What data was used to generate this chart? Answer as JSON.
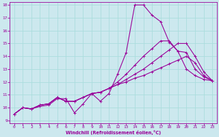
{
  "xlabel": "Windchill (Refroidissement éolien,°C)",
  "x": [
    0,
    1,
    2,
    3,
    4,
    5,
    6,
    7,
    8,
    9,
    10,
    11,
    12,
    13,
    14,
    15,
    16,
    17,
    18,
    19,
    20,
    21,
    22,
    23
  ],
  "line1": [
    9.5,
    10.0,
    9.9,
    10.1,
    10.2,
    10.7,
    10.7,
    9.6,
    10.3,
    11.1,
    10.5,
    11.1,
    12.6,
    14.3,
    18.0,
    18.0,
    17.2,
    16.7,
    15.1,
    14.4,
    13.0,
    12.5,
    12.2,
    12.1
  ],
  "line2": [
    9.5,
    10.0,
    9.9,
    10.2,
    10.3,
    10.8,
    10.5,
    10.5,
    10.8,
    11.1,
    11.2,
    11.5,
    12.0,
    12.6,
    13.3,
    14.0,
    14.6,
    15.2,
    15.2,
    14.4,
    14.3,
    13.0,
    12.4,
    12.1
  ],
  "line3": [
    9.5,
    10.0,
    9.9,
    10.2,
    10.3,
    10.8,
    10.5,
    10.5,
    10.8,
    11.1,
    11.2,
    11.5,
    11.8,
    12.2,
    12.6,
    13.0,
    13.5,
    14.0,
    14.5,
    15.0,
    15.0,
    14.0,
    12.8,
    12.1
  ],
  "line4": [
    9.5,
    10.0,
    9.9,
    10.2,
    10.3,
    10.8,
    10.5,
    10.5,
    10.8,
    11.1,
    11.2,
    11.5,
    11.8,
    12.0,
    12.3,
    12.5,
    12.8,
    13.1,
    13.4,
    13.7,
    14.0,
    13.5,
    12.5,
    12.1
  ],
  "line_color": "#990099",
  "bg_color": "#cce8ee",
  "grid_color": "#aadddd",
  "ylim": [
    9,
    18
  ],
  "xlim": [
    0,
    23
  ],
  "yticks": [
    9,
    10,
    11,
    12,
    13,
    14,
    15,
    16,
    17,
    18
  ],
  "xticks": [
    0,
    1,
    2,
    3,
    4,
    5,
    6,
    7,
    8,
    9,
    10,
    11,
    12,
    13,
    14,
    15,
    16,
    17,
    18,
    19,
    20,
    21,
    22,
    23
  ]
}
